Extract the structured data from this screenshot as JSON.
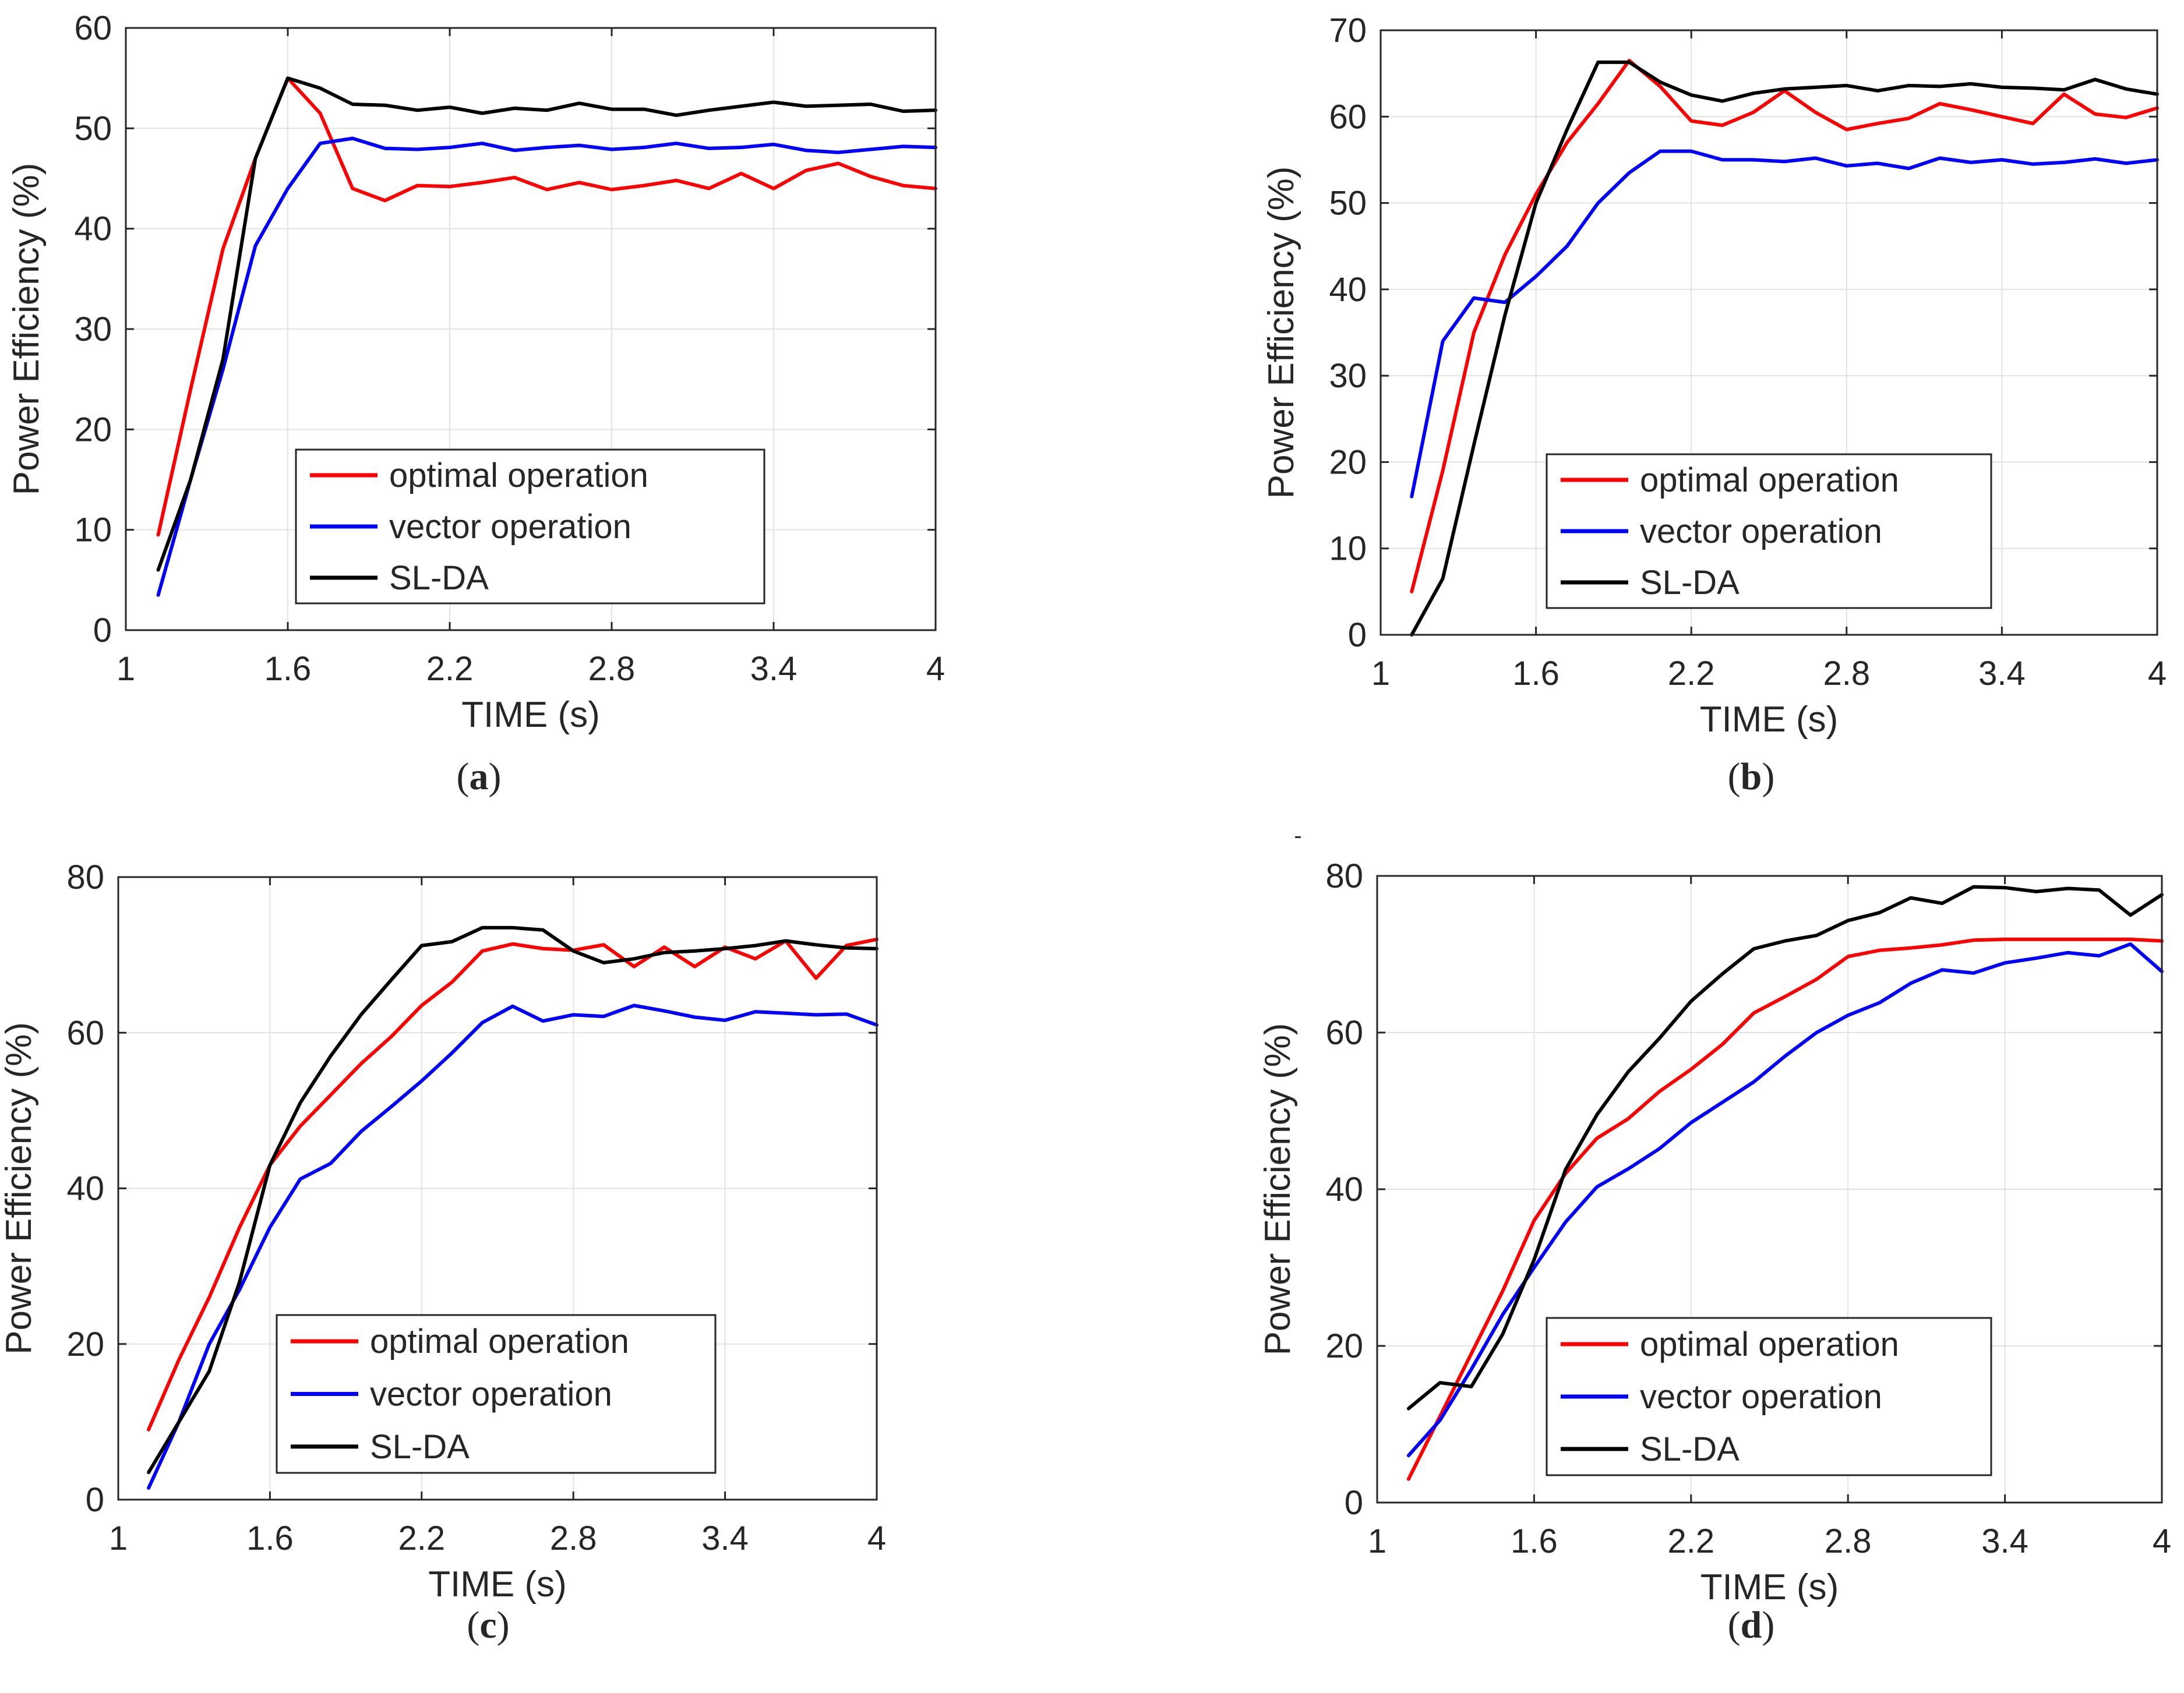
{
  "figure": {
    "stray_mark": "-"
  },
  "chart_data": [
    {
      "id": "a",
      "type": "line",
      "caption_open": "(",
      "caption_letter": "a",
      "caption_close": ")",
      "xlabel": "TIME (s)",
      "ylabel": "Power Efficiency (%)",
      "xlim": [
        1,
        4
      ],
      "ylim": [
        0,
        60
      ],
      "xticks": [
        "1",
        "1.6",
        "2.2",
        "2.8",
        "3.4",
        "4"
      ],
      "xtick_values": [
        1,
        1.6,
        2.2,
        2.8,
        3.4,
        4
      ],
      "yticks": [
        "0",
        "10",
        "20",
        "30",
        "40",
        "50",
        "60"
      ],
      "ytick_values": [
        0,
        10,
        20,
        30,
        40,
        50,
        60
      ],
      "grid": true,
      "legend_position": "lower-center",
      "series": [
        {
          "name": "optimal operation",
          "color": "#ff0000",
          "x": [
            1.12,
            1.24,
            1.36,
            1.48,
            1.6,
            1.72,
            1.84,
            1.96,
            2.08,
            2.2,
            2.32,
            2.44,
            2.56,
            2.68,
            2.8,
            2.92,
            3.04,
            3.16,
            3.28,
            3.4,
            3.52,
            3.64,
            3.76,
            3.88,
            4.0
          ],
          "y": [
            9.5,
            24,
            38,
            47,
            55,
            51.5,
            44,
            42.8,
            44.3,
            44.2,
            44.6,
            45.1,
            43.9,
            44.6,
            43.9,
            44.3,
            44.8,
            44,
            45.5,
            44,
            45.8,
            46.5,
            45.2,
            44.3,
            44
          ]
        },
        {
          "name": "vector operation",
          "color": "#0000ff",
          "x": [
            1.12,
            1.24,
            1.36,
            1.48,
            1.6,
            1.72,
            1.84,
            1.96,
            2.08,
            2.2,
            2.32,
            2.44,
            2.56,
            2.68,
            2.8,
            2.92,
            3.04,
            3.16,
            3.28,
            3.4,
            3.52,
            3.64,
            3.76,
            3.88,
            4.0
          ],
          "y": [
            3.5,
            15,
            26,
            38.3,
            44,
            48.5,
            49,
            48,
            47.9,
            48.1,
            48.5,
            47.8,
            48.1,
            48.3,
            47.9,
            48.1,
            48.5,
            48,
            48.1,
            48.4,
            47.8,
            47.6,
            47.9,
            48.2,
            48.1
          ]
        },
        {
          "name": "SL-DA",
          "color": "#000000",
          "x": [
            1.12,
            1.24,
            1.36,
            1.48,
            1.6,
            1.72,
            1.84,
            1.96,
            2.08,
            2.2,
            2.32,
            2.44,
            2.56,
            2.68,
            2.8,
            2.92,
            3.04,
            3.16,
            3.28,
            3.4,
            3.52,
            3.64,
            3.76,
            3.88,
            4.0
          ],
          "y": [
            6,
            15,
            27,
            47,
            55,
            54,
            52.4,
            52.3,
            51.8,
            52.1,
            51.5,
            52,
            51.8,
            52.5,
            51.9,
            51.9,
            51.3,
            51.8,
            52.2,
            52.6,
            52.2,
            52.3,
            52.4,
            51.7,
            51.8
          ]
        }
      ]
    },
    {
      "id": "b",
      "type": "line",
      "caption_open": "(",
      "caption_letter": "b",
      "caption_close": ")",
      "xlabel": "TIME (s)",
      "ylabel": "Power Efficiency (%)",
      "xlim": [
        1,
        4
      ],
      "ylim": [
        0,
        70
      ],
      "xticks": [
        "1",
        "1.6",
        "2.2",
        "2.8",
        "3.4",
        "4"
      ],
      "xtick_values": [
        1,
        1.6,
        2.2,
        2.8,
        3.4,
        4
      ],
      "yticks": [
        "0",
        "10",
        "20",
        "30",
        "40",
        "50",
        "60",
        "70"
      ],
      "ytick_values": [
        0,
        10,
        20,
        30,
        40,
        50,
        60,
        70
      ],
      "grid": true,
      "legend_position": "lower-center",
      "series": [
        {
          "name": "optimal operation",
          "color": "#ff0000",
          "x": [
            1.12,
            1.24,
            1.36,
            1.48,
            1.6,
            1.72,
            1.84,
            1.96,
            2.08,
            2.2,
            2.32,
            2.44,
            2.56,
            2.68,
            2.8,
            2.92,
            3.04,
            3.16,
            3.28,
            3.4,
            3.52,
            3.64,
            3.76,
            3.88,
            4.0
          ],
          "y": [
            5,
            19,
            35,
            44,
            51,
            57,
            61.5,
            66.5,
            63.5,
            59.5,
            59,
            60.5,
            63,
            60.5,
            58.5,
            59.2,
            59.8,
            61.5,
            60.8,
            60,
            59.2,
            62.6,
            60.3,
            59.9,
            61
          ]
        },
        {
          "name": "vector operation",
          "color": "#0000ff",
          "x": [
            1.12,
            1.24,
            1.36,
            1.48,
            1.6,
            1.72,
            1.84,
            1.96,
            2.08,
            2.2,
            2.32,
            2.44,
            2.56,
            2.68,
            2.8,
            2.92,
            3.04,
            3.16,
            3.28,
            3.4,
            3.52,
            3.64,
            3.76,
            3.88,
            4.0
          ],
          "y": [
            16,
            34,
            39,
            38.5,
            41.5,
            45,
            50,
            53.5,
            56,
            56,
            55,
            55,
            54.8,
            55.2,
            54.3,
            54.6,
            54,
            55.2,
            54.7,
            55,
            54.5,
            54.7,
            55.1,
            54.6,
            55
          ]
        },
        {
          "name": "SL-DA",
          "color": "#000000",
          "x": [
            1.12,
            1.24,
            1.36,
            1.48,
            1.6,
            1.72,
            1.84,
            1.96,
            2.08,
            2.2,
            2.32,
            2.44,
            2.56,
            2.68,
            2.8,
            2.92,
            3.04,
            3.16,
            3.28,
            3.4,
            3.52,
            3.64,
            3.76,
            3.88,
            4.0
          ],
          "y": [
            0,
            6.5,
            22,
            37,
            50,
            58.5,
            66.3,
            66.3,
            64,
            62.5,
            61.8,
            62.7,
            63.2,
            63.4,
            63.6,
            63,
            63.6,
            63.5,
            63.8,
            63.4,
            63.3,
            63.1,
            64.3,
            63.2,
            62.6
          ]
        }
      ]
    },
    {
      "id": "c",
      "type": "line",
      "caption_open": "(",
      "caption_letter": "c",
      "caption_close": ")",
      "xlabel": "TIME (s)",
      "ylabel": "Power Efficiency (%)",
      "xlim": [
        1,
        4
      ],
      "ylim": [
        0,
        80
      ],
      "xticks": [
        "1",
        "1.6",
        "2.2",
        "2.8",
        "3.4",
        "4"
      ],
      "xtick_values": [
        1,
        1.6,
        2.2,
        2.8,
        3.4,
        4
      ],
      "yticks": [
        "0",
        "20",
        "40",
        "60",
        "80"
      ],
      "ytick_values": [
        0,
        20,
        40,
        60,
        80
      ],
      "grid": true,
      "legend_position": "lower-center",
      "series": [
        {
          "name": "optimal operation",
          "color": "#ff0000",
          "x": [
            1.12,
            1.24,
            1.36,
            1.48,
            1.6,
            1.72,
            1.84,
            1.96,
            2.08,
            2.2,
            2.32,
            2.44,
            2.56,
            2.68,
            2.8,
            2.92,
            3.04,
            3.16,
            3.28,
            3.4,
            3.52,
            3.64,
            3.76,
            3.88,
            4.0
          ],
          "y": [
            9,
            18,
            26,
            35,
            43,
            48,
            52,
            56,
            59.5,
            63.5,
            66.5,
            70.5,
            71.4,
            70.8,
            70.6,
            71.3,
            68.5,
            71,
            68.5,
            71,
            69.5,
            71.8,
            67,
            71.2,
            72
          ]
        },
        {
          "name": "vector operation",
          "color": "#0000ff",
          "x": [
            1.12,
            1.24,
            1.36,
            1.48,
            1.6,
            1.72,
            1.84,
            1.96,
            2.08,
            2.2,
            2.32,
            2.44,
            2.56,
            2.68,
            2.8,
            2.92,
            3.04,
            3.16,
            3.28,
            3.4,
            3.52,
            3.64,
            3.76,
            3.88,
            4.0
          ],
          "y": [
            1.5,
            10,
            20,
            27,
            35,
            41.2,
            43.2,
            47.3,
            50.5,
            53.8,
            57.4,
            61.3,
            63.4,
            61.5,
            62.3,
            62.1,
            63.5,
            62.8,
            62,
            61.6,
            62.7,
            62.5,
            62.3,
            62.4,
            61
          ]
        },
        {
          "name": "SL-DA",
          "color": "#000000",
          "x": [
            1.12,
            1.24,
            1.36,
            1.48,
            1.6,
            1.72,
            1.84,
            1.96,
            2.08,
            2.2,
            2.32,
            2.44,
            2.56,
            2.68,
            2.8,
            2.92,
            3.04,
            3.16,
            3.28,
            3.4,
            3.52,
            3.64,
            3.76,
            3.88,
            4.0
          ],
          "y": [
            3.5,
            10,
            16.5,
            28,
            43,
            51,
            57,
            62.3,
            66.8,
            71.2,
            71.7,
            73.5,
            73.5,
            73.2,
            70.5,
            69,
            69.5,
            70.3,
            70.5,
            70.8,
            71.2,
            71.8,
            71.3,
            70.9,
            70.8
          ]
        }
      ]
    },
    {
      "id": "d",
      "type": "line",
      "caption_open": "(",
      "caption_letter": "d",
      "caption_close": ")",
      "xlabel": "TIME (s)",
      "ylabel": "Power Efficiency (%)",
      "xlim": [
        1,
        4
      ],
      "ylim": [
        0,
        80
      ],
      "xticks": [
        "1",
        "1.6",
        "2.2",
        "2.8",
        "3.4",
        "4"
      ],
      "xtick_values": [
        1,
        1.6,
        2.2,
        2.8,
        3.4,
        4
      ],
      "yticks": [
        "0",
        "20",
        "40",
        "60",
        "80"
      ],
      "ytick_values": [
        0,
        20,
        40,
        60,
        80
      ],
      "grid": true,
      "legend_position": "lower-center",
      "series": [
        {
          "name": "optimal operation",
          "color": "#ff0000",
          "x": [
            1.12,
            1.24,
            1.36,
            1.48,
            1.6,
            1.72,
            1.84,
            1.96,
            2.08,
            2.2,
            2.32,
            2.44,
            2.56,
            2.68,
            2.8,
            2.92,
            3.04,
            3.16,
            3.28,
            3.4,
            3.52,
            3.64,
            3.76,
            3.88,
            4.0
          ],
          "y": [
            3,
            11,
            19,
            27,
            36,
            42,
            46.5,
            49,
            52.5,
            55.3,
            58.5,
            62.5,
            64.6,
            66.8,
            69.7,
            70.5,
            70.8,
            71.2,
            71.8,
            71.9,
            71.9,
            71.9,
            71.9,
            71.9,
            71.7
          ]
        },
        {
          "name": "vector operation",
          "color": "#0000ff",
          "x": [
            1.12,
            1.24,
            1.36,
            1.48,
            1.6,
            1.72,
            1.84,
            1.96,
            2.08,
            2.2,
            2.32,
            2.44,
            2.56,
            2.68,
            2.8,
            2.92,
            3.04,
            3.16,
            3.28,
            3.4,
            3.52,
            3.64,
            3.76,
            3.88,
            4.0
          ],
          "y": [
            6,
            10.5,
            17,
            24,
            30,
            35.8,
            40.3,
            42.6,
            45.2,
            48.5,
            51.1,
            53.7,
            57,
            60,
            62.2,
            63.8,
            66.3,
            68,
            67.6,
            68.9,
            69.5,
            70.2,
            69.8,
            71.3,
            67.8
          ]
        },
        {
          "name": "SL-DA",
          "color": "#000000",
          "x": [
            1.12,
            1.24,
            1.36,
            1.48,
            1.6,
            1.72,
            1.84,
            1.96,
            2.08,
            2.2,
            2.32,
            2.44,
            2.56,
            2.68,
            2.8,
            2.92,
            3.04,
            3.16,
            3.28,
            3.4,
            3.52,
            3.64,
            3.76,
            3.88,
            4.0
          ],
          "y": [
            12,
            15.3,
            14.8,
            21.5,
            31,
            42.5,
            49.5,
            55,
            59.3,
            64,
            67.5,
            70.7,
            71.7,
            72.4,
            74.3,
            75.3,
            77.2,
            76.5,
            78.6,
            78.5,
            78,
            78.4,
            78.2,
            75,
            77.6
          ]
        }
      ]
    }
  ]
}
